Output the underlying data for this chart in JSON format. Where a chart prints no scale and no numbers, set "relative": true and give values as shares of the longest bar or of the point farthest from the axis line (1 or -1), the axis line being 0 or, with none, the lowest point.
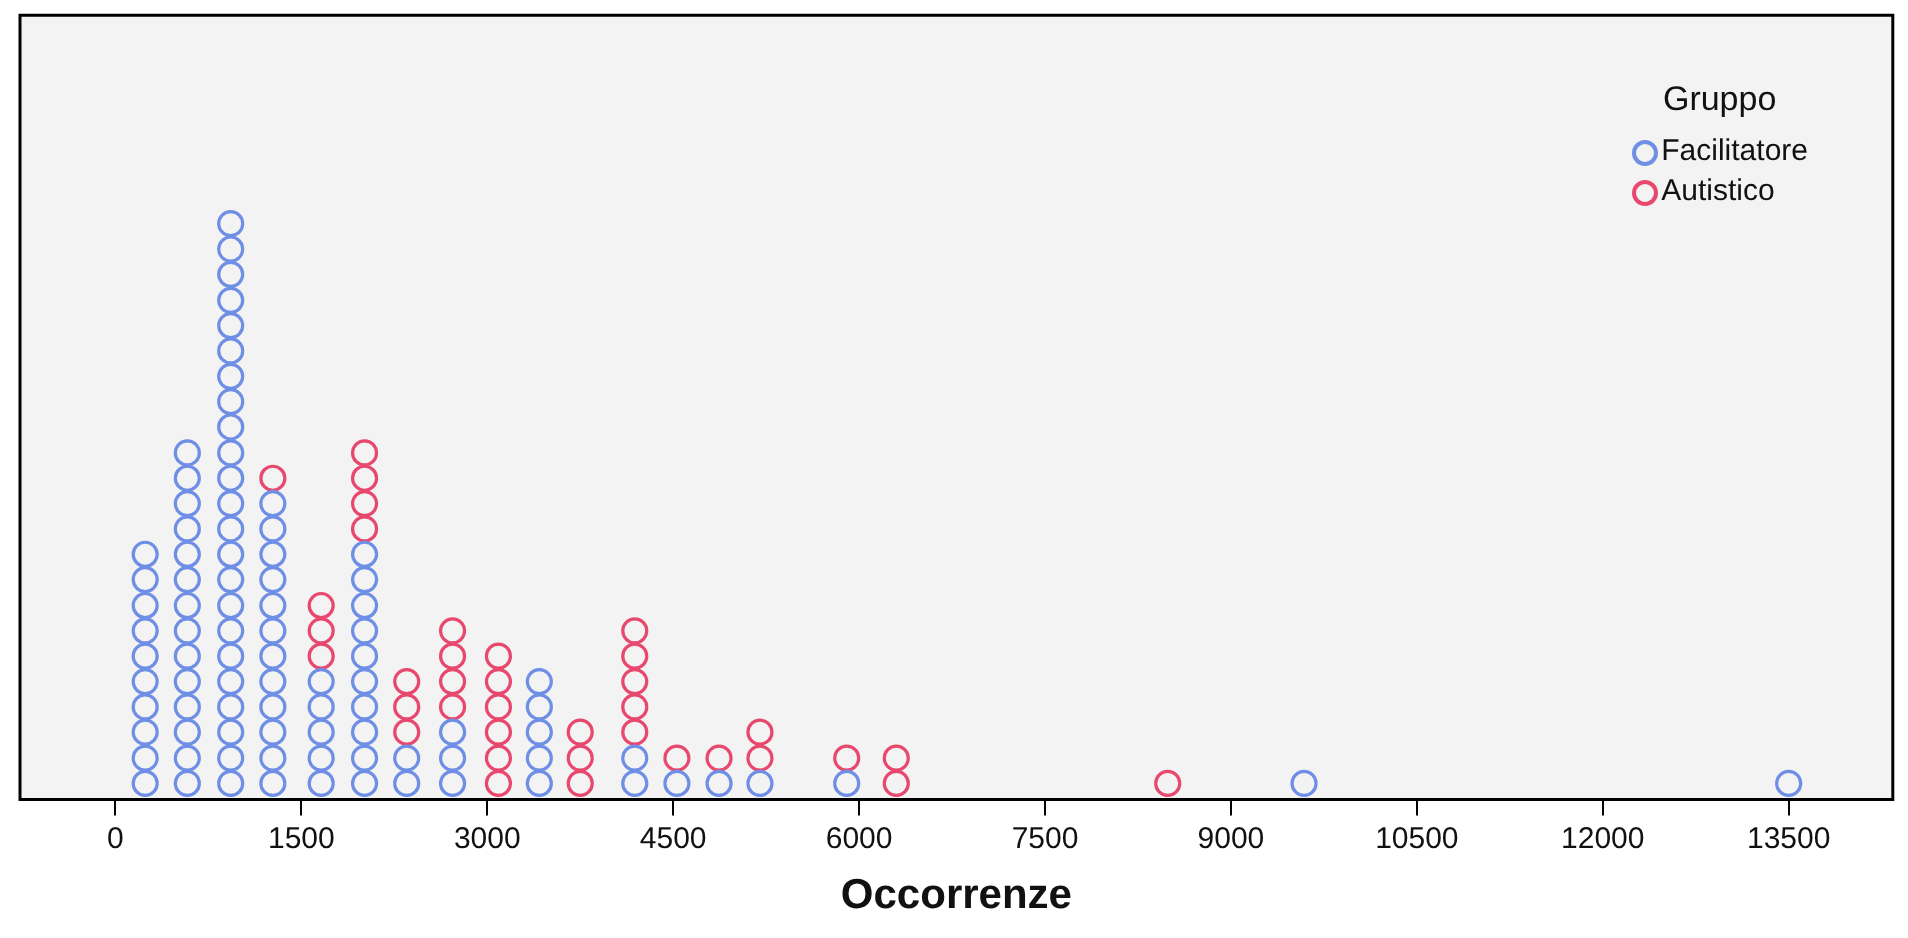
{
  "chart_data": {
    "type": "scatter",
    "xlabel": "Occorrenze",
    "legend_title": "Gruppo",
    "legend": "top right",
    "marker": "circle",
    "grid": false,
    "relative": true,
    "xlim": [
      -770,
      14340
    ],
    "xticks": [
      0,
      1500,
      3000,
      4500,
      6000,
      7500,
      9000,
      10500,
      12000,
      13500
    ],
    "series": [
      {
        "name": "Facilitatore",
        "color": "#6f8fe6",
        "x": [
          240,
          240,
          240,
          240,
          240,
          240,
          240,
          240,
          240,
          240,
          580,
          580,
          580,
          580,
          580,
          580,
          580,
          580,
          580,
          580,
          580,
          580,
          580,
          580,
          930,
          930,
          930,
          930,
          930,
          930,
          930,
          930,
          930,
          930,
          930,
          930,
          930,
          930,
          930,
          930,
          930,
          930,
          930,
          930,
          930,
          930,
          930,
          1270,
          1270,
          1270,
          1270,
          1270,
          1270,
          1270,
          1270,
          1270,
          1270,
          1270,
          1270,
          1660,
          1660,
          1660,
          1660,
          1660,
          2010,
          2010,
          2010,
          2010,
          2010,
          2010,
          2010,
          2010,
          2010,
          2010,
          2350,
          2350,
          2720,
          2720,
          2720,
          3420,
          3420,
          3420,
          3420,
          3420,
          4190,
          4190,
          4530,
          4870,
          5200,
          5900,
          9590,
          13500
        ],
        "values": [
          0.028,
          0.072,
          0.117,
          0.161,
          0.205,
          0.249,
          0.293,
          0.337,
          0.382,
          0.426,
          0.028,
          0.072,
          0.117,
          0.161,
          0.205,
          0.249,
          0.293,
          0.337,
          0.382,
          0.426,
          0.47,
          0.514,
          0.558,
          0.602,
          0.028,
          0.072,
          0.117,
          0.161,
          0.205,
          0.249,
          0.293,
          0.337,
          0.382,
          0.426,
          0.47,
          0.514,
          0.558,
          0.602,
          0.647,
          0.691,
          0.735,
          0.779,
          0.823,
          0.867,
          0.912,
          0.956,
          1,
          0.028,
          0.072,
          0.117,
          0.161,
          0.205,
          0.249,
          0.293,
          0.337,
          0.382,
          0.426,
          0.47,
          0.514,
          0.028,
          0.072,
          0.117,
          0.161,
          0.205,
          0.028,
          0.072,
          0.117,
          0.161,
          0.205,
          0.249,
          0.293,
          0.337,
          0.382,
          0.426,
          0.028,
          0.072,
          0.028,
          0.072,
          0.117,
          0.028,
          0.072,
          0.117,
          0.161,
          0.205,
          0.028,
          0.072,
          0.028,
          0.028,
          0.028,
          0.028,
          0.028,
          0.028
        ]
      },
      {
        "name": "Autistico",
        "color": "#e8486e",
        "x": [
          1270,
          1660,
          1660,
          1660,
          2010,
          2010,
          2010,
          2010,
          2350,
          2350,
          2350,
          2720,
          2720,
          2720,
          2720,
          3090,
          3090,
          3090,
          3090,
          3090,
          3090,
          3750,
          3750,
          3750,
          4190,
          4190,
          4190,
          4190,
          4190,
          4530,
          4870,
          5200,
          5200,
          5900,
          6300,
          6300,
          8490
        ],
        "values": [
          0.558,
          0.249,
          0.293,
          0.337,
          0.47,
          0.514,
          0.558,
          0.602,
          0.117,
          0.161,
          0.205,
          0.161,
          0.205,
          0.249,
          0.293,
          0.028,
          0.072,
          0.117,
          0.161,
          0.205,
          0.249,
          0.028,
          0.072,
          0.117,
          0.117,
          0.161,
          0.205,
          0.249,
          0.293,
          0.072,
          0.072,
          0.072,
          0.117,
          0.072,
          0.028,
          0.072,
          0.028
        ]
      }
    ]
  }
}
